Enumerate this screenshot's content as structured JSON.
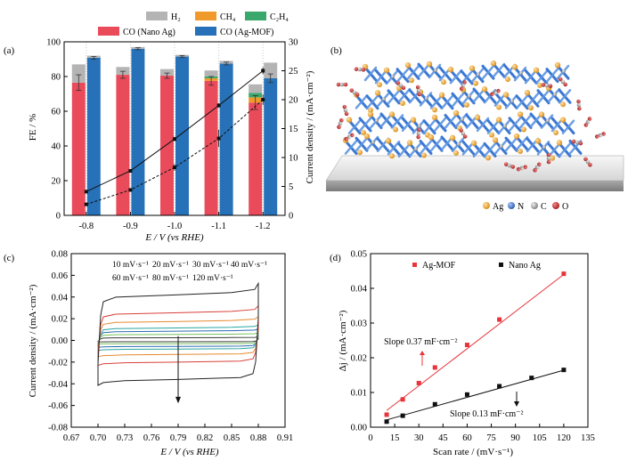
{
  "panels": {
    "a": {
      "label": "(a)"
    },
    "b": {
      "label": "(b)"
    },
    "c": {
      "label": "(c)"
    },
    "d": {
      "label": "(d)"
    }
  },
  "chart_data": [
    {
      "panel": "a",
      "type": "bar",
      "xlabel": "E / V (vs RHE)",
      "ylabel": "FE / %",
      "y2label": "Current density / (mA·cm⁻²)",
      "categories": [
        "-0.8",
        "-0.9",
        "-1.0",
        "-1.1",
        "-1.2"
      ],
      "ylim": [
        0,
        100
      ],
      "y2lim": [
        0,
        30
      ],
      "yticks": [
        0,
        20,
        40,
        60,
        80,
        100
      ],
      "y2ticks": [
        0,
        5,
        10,
        15,
        20,
        25,
        30
      ],
      "legend": [
        {
          "name": "H₂",
          "color": "#b4b4b4"
        },
        {
          "name": "CH₄",
          "color": "#f09a2c"
        },
        {
          "name": "C₂H₄",
          "color": "#39a86a"
        },
        {
          "name": "CO (Nano Ag)",
          "color": "#ea4b5b"
        },
        {
          "name": "CO (Ag-MOF)",
          "color": "#2671b8"
        }
      ],
      "series": [
        {
          "name": "CO (Nano Ag)",
          "material": "Nano Ag",
          "component": "CO",
          "color": "#ea4b5b",
          "values": [
            76.5,
            81,
            80.5,
            77.5,
            65
          ]
        },
        {
          "name": "CH₄",
          "material": "Nano Ag",
          "component": "CH4",
          "color": "#f09a2c",
          "values": [
            0,
            0,
            0,
            1.5,
            3
          ]
        },
        {
          "name": "C₂H₄",
          "material": "Nano Ag",
          "component": "C2H4",
          "color": "#39a86a",
          "values": [
            0,
            0,
            0,
            1,
            2.5
          ]
        },
        {
          "name": "H₂",
          "material": "Nano Ag",
          "component": "H2",
          "color": "#b4b4b4",
          "values": [
            10.5,
            4.5,
            3.8,
            3.5,
            5
          ]
        },
        {
          "name": "CO (Ag-MOF)",
          "material": "Ag-MOF",
          "component": "CO",
          "color": "#2671b8",
          "values": [
            90.8,
            96,
            91.5,
            87.5,
            79
          ]
        },
        {
          "name": "H₂",
          "material": "Ag-MOF",
          "component": "H2",
          "color": "#b4b4b4",
          "values": [
            1.2,
            1,
            1,
            1.5,
            9
          ]
        }
      ],
      "co_error": {
        "Nano Ag": [
          4.5,
          2,
          1.5,
          2.5,
          4
        ],
        "Ag-MOF": [
          0.8,
          0.6,
          0.6,
          0.8,
          2.5
        ]
      },
      "current_density": [
        {
          "material": "Ag-MOF",
          "style": "solid",
          "x": [
            -0.8,
            -0.9,
            -1.0,
            -1.1,
            -1.2
          ],
          "y": [
            4.1,
            7.7,
            13.2,
            19.0,
            25.0
          ],
          "err": [
            0.2,
            0.3,
            0.4,
            0.4,
            0.6
          ]
        },
        {
          "material": "Nano Ag",
          "style": "dashed",
          "x": [
            -0.8,
            -0.9,
            -1.0,
            -1.1,
            -1.2
          ],
          "y": [
            1.9,
            4.4,
            8.3,
            13.3,
            20.0
          ],
          "err": [
            0.2,
            0.3,
            0.6,
            1.5,
            0.9
          ]
        }
      ]
    },
    {
      "panel": "c",
      "type": "line",
      "xlabel": "E / V (vs RHE)",
      "ylabel": "Current density / (mA·cm⁻²)",
      "xlim": [
        0.67,
        0.91
      ],
      "ylim": [
        -0.08,
        0.08
      ],
      "xticks": [
        0.67,
        0.7,
        0.73,
        0.76,
        0.79,
        0.82,
        0.85,
        0.88,
        0.91
      ],
      "yticks": [
        -0.08,
        -0.06,
        -0.04,
        -0.02,
        0.0,
        0.02,
        0.04,
        0.06,
        0.08
      ],
      "tick_labels_y": [
        "-0.08",
        "-0.06",
        "-0.04",
        "-0.02",
        "0.00",
        "0.02",
        "0.04",
        "0.06",
        "0.08"
      ],
      "potential_window": [
        0.7,
        0.88
      ],
      "series": [
        {
          "name": "10 mV·s⁻¹",
          "color": "#3a3a3a",
          "anodic": 0.0025,
          "cathodic": -0.0012
        },
        {
          "name": "20 mV·s⁻¹",
          "color": "#77c25e",
          "anodic": 0.0055,
          "cathodic": -0.003
        },
        {
          "name": "30 mV·s⁻¹",
          "color": "#2c6db3",
          "anodic": 0.0085,
          "cathodic": -0.0055
        },
        {
          "name": "40 mV·s⁻¹",
          "color": "#2aa6a0",
          "anodic": 0.0115,
          "cathodic": -0.008
        },
        {
          "name": "60 mV·s⁻¹",
          "color": "#e78a2f",
          "anodic": 0.0175,
          "cathodic": -0.013
        },
        {
          "name": "80 mV·s⁻¹",
          "color": "#d7403a",
          "anodic": 0.0255,
          "cathodic": -0.02
        },
        {
          "name": "120 mV·s⁻¹",
          "color": "#222222",
          "anodic": 0.042,
          "cathodic": -0.036
        }
      ]
    },
    {
      "panel": "d",
      "type": "scatter",
      "xlabel": "Scan rate / (mV·s⁻¹)",
      "ylabel": "Δj / (mA·cm⁻²)",
      "xlim": [
        0,
        135
      ],
      "ylim": [
        0,
        0.05
      ],
      "xticks": [
        0,
        15,
        30,
        45,
        60,
        75,
        90,
        105,
        120,
        135
      ],
      "yticks": [
        0.0,
        0.01,
        0.02,
        0.03,
        0.04,
        0.05
      ],
      "tick_labels_y": [
        "0.00",
        "0.01",
        "0.02",
        "0.03",
        "0.04",
        "0.05"
      ],
      "series": [
        {
          "name": "Ag-MOF",
          "color": "#e8343a",
          "x": [
            10,
            20,
            30,
            40,
            60,
            80,
            120
          ],
          "y": [
            0.0036,
            0.008,
            0.0127,
            0.0172,
            0.0237,
            0.031,
            0.0442
          ],
          "fit": [
            [
              10,
              0.0048
            ],
            [
              120,
              0.044
            ]
          ]
        },
        {
          "name": "Nano Ag",
          "color": "#111111",
          "x": [
            10,
            20,
            40,
            60,
            80,
            100,
            120
          ],
          "y": [
            0.0016,
            0.0033,
            0.0066,
            0.0094,
            0.0118,
            0.0142,
            0.0165
          ],
          "fit": [
            [
              10,
              0.0021
            ],
            [
              120,
              0.0164
            ]
          ]
        }
      ],
      "annotations": [
        {
          "text": "Slope 0.37 mF·cm⁻²",
          "color": "#e8343a"
        },
        {
          "text": "Slope 0.13 mF·cm⁻²",
          "color": "#111111"
        }
      ]
    }
  ],
  "structure_legend": [
    {
      "symbol": "Ag",
      "color": "#f0a43a"
    },
    {
      "symbol": "N",
      "color": "#3c78d2"
    },
    {
      "symbol": "C",
      "color": "#9a9a9a"
    },
    {
      "symbol": "O",
      "color": "#c42a2a"
    }
  ]
}
